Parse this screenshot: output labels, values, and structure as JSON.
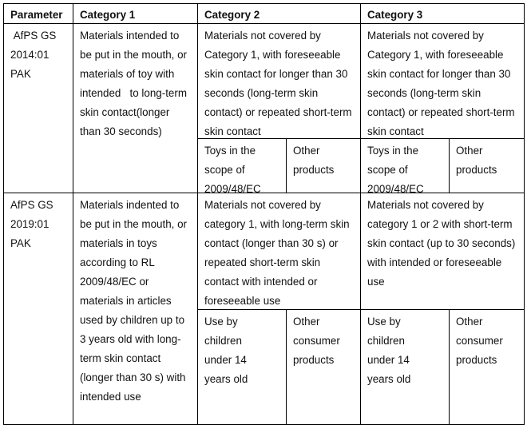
{
  "headers": [
    "Parameter",
    "Category 1",
    "Category 2",
    "Category 3"
  ],
  "rows": [
    {
      "parameter": " AfPS GS 2014:01 PAK",
      "category1": "Materials intended to be put in the mouth, or materials of toy with intended   to long-term skin contact(longer than 30 seconds)",
      "category2": {
        "main": "Materials not covered by Category 1, with foreseeable skin contact for longer than 30 seconds (long-term skin contact) or repeated short-term skin contact",
        "sub": [
          "Toys in the scope of 2009/48/EC",
          "Other products"
        ]
      },
      "category3": {
        "main": "Materials not covered by Category 1, with foreseeable skin contact for longer than 30 seconds (long-term skin contact) or repeated short-term skin contact",
        "sub": [
          "Toys in the scope of 2009/48/EC",
          "Other products"
        ]
      }
    },
    {
      "parameter": "AfPS GS 2019:01 PAK",
      "category1": "Materials indented to be put in the mouth, or materials in toys according to RL 2009/48/EC or materials in articles used by children up to 3 years old with long-term skin contact (longer than 30 s) with intended use",
      "category2": {
        "main": "Materials not covered by category 1, with long-term skin contact (longer than 30 s) or repeated short-term skin contact with intended or foreseeable use",
        "sub": [
          "Use by children under 14 years old",
          "Other consumer products"
        ]
      },
      "category3": {
        "main": "Materials not covered by category 1 or 2 with short-term skin contact (up to 30 seconds) with intended or foreseeable use",
        "sub": [
          "Use by children under 14 years old",
          "Other consumer products"
        ]
      }
    }
  ]
}
